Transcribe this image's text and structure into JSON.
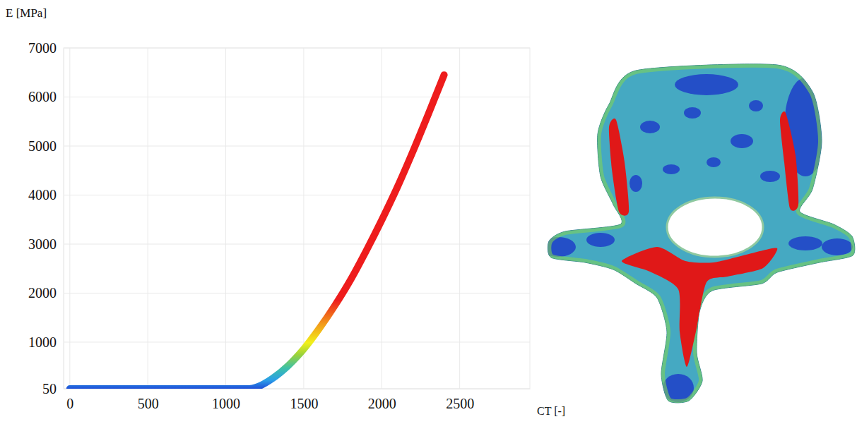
{
  "chart_data": {
    "type": "line",
    "x_label": "CT [-]",
    "y_label": "E [MPa]",
    "x": [
      0,
      200,
      400,
      600,
      800,
      1000,
      1150,
      1200,
      1300,
      1400,
      1500,
      1600,
      1700,
      1800,
      1900,
      2000,
      2100,
      2200,
      2300,
      2400
    ],
    "values": [
      50,
      50,
      50,
      50,
      50,
      50,
      50,
      85,
      260,
      520,
      860,
      1280,
      1750,
      2270,
      2860,
      3490,
      4160,
      4890,
      5660,
      6450
    ],
    "xlim": [
      -40,
      2950
    ],
    "ylim": [
      50,
      7000
    ],
    "xticks": [
      0,
      500,
      1000,
      1500,
      2000,
      2500
    ],
    "yticks": [
      50,
      1000,
      2000,
      3000,
      4000,
      5000,
      6000,
      7000
    ],
    "grid": true
  }
}
